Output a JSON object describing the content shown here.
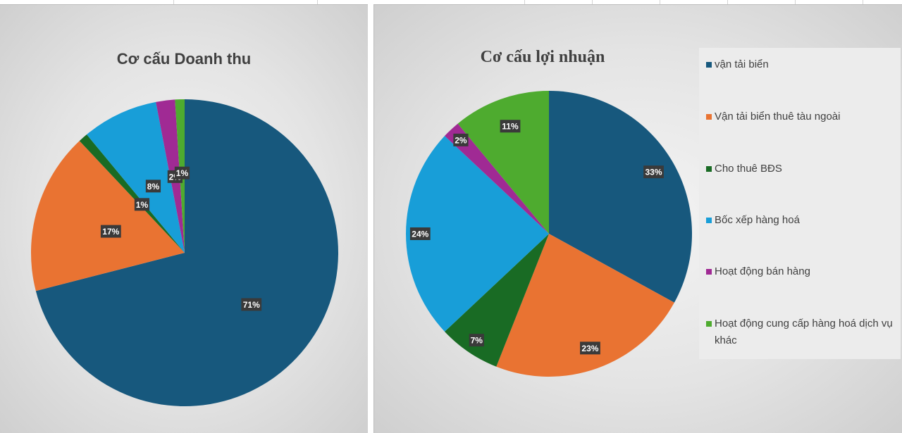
{
  "chart_data": [
    {
      "type": "pie",
      "title": "Cơ cấu Doanh thu",
      "categories": [
        "vận tải biển",
        "Vận tải biển thuê tàu ngoài",
        "Cho thuê BĐS",
        "Bốc xếp hàng hoá",
        "Hoạt động bán hàng",
        "Hoạt động cung cấp hàng hoá dịch vụ khác"
      ],
      "values": [
        71,
        17,
        1,
        8,
        2,
        1
      ],
      "data_labels": [
        "71%",
        "17%",
        "1%",
        "8%",
        "2%",
        "1%"
      ],
      "colors": [
        "#17587d",
        "#e97332",
        "#196b24",
        "#189ed8",
        "#a02a94",
        "#4eab2f"
      ]
    },
    {
      "type": "pie",
      "title": "Cơ cấu lợi nhuận",
      "categories": [
        "vận tải biển",
        "Vận tải biển thuê tàu ngoài",
        "Cho thuê BĐS",
        "Bốc xếp hàng hoá",
        "Hoạt động bán hàng",
        "Hoạt động cung cấp hàng hoá dịch vụ khác"
      ],
      "values": [
        33,
        23,
        7,
        24,
        2,
        11
      ],
      "data_labels": [
        "33%",
        "23%",
        "7%",
        "24%",
        "2%",
        "11%"
      ],
      "colors": [
        "#17587d",
        "#e97332",
        "#196b24",
        "#189ed8",
        "#a02a94",
        "#4eab2f"
      ],
      "legend": "right"
    }
  ],
  "legend": {
    "items": [
      "vận tải biển",
      "Vận tải biển thuê tàu ngoài",
      "Cho thuê BĐS",
      "Bốc xếp hàng hoá",
      "Hoạt động bán hàng",
      "Hoạt động cung cấp hàng hoá dịch vụ khác"
    ]
  }
}
